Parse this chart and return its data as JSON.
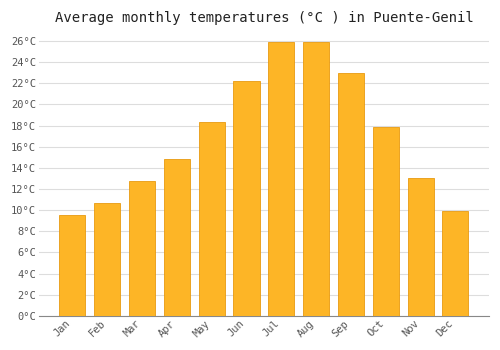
{
  "title": "Average monthly temperatures (°C ) in Puente-Genil",
  "months": [
    "Jan",
    "Feb",
    "Mar",
    "Apr",
    "May",
    "Jun",
    "Jul",
    "Aug",
    "Sep",
    "Oct",
    "Nov",
    "Dec"
  ],
  "values": [
    9.5,
    10.7,
    12.8,
    14.8,
    18.3,
    22.2,
    25.9,
    25.9,
    23.0,
    17.9,
    13.0,
    9.9
  ],
  "bar_color": "#FDB526",
  "bar_edge_color": "#E89A10",
  "plot_bg": "#FFFFFF",
  "fig_bg": "#FFFFFF",
  "grid_color": "#DDDDDD",
  "title_fontsize": 10,
  "tick_fontsize": 7.5,
  "ytick_step": 2,
  "ylim": [
    0,
    27
  ],
  "ytick_max": 26
}
